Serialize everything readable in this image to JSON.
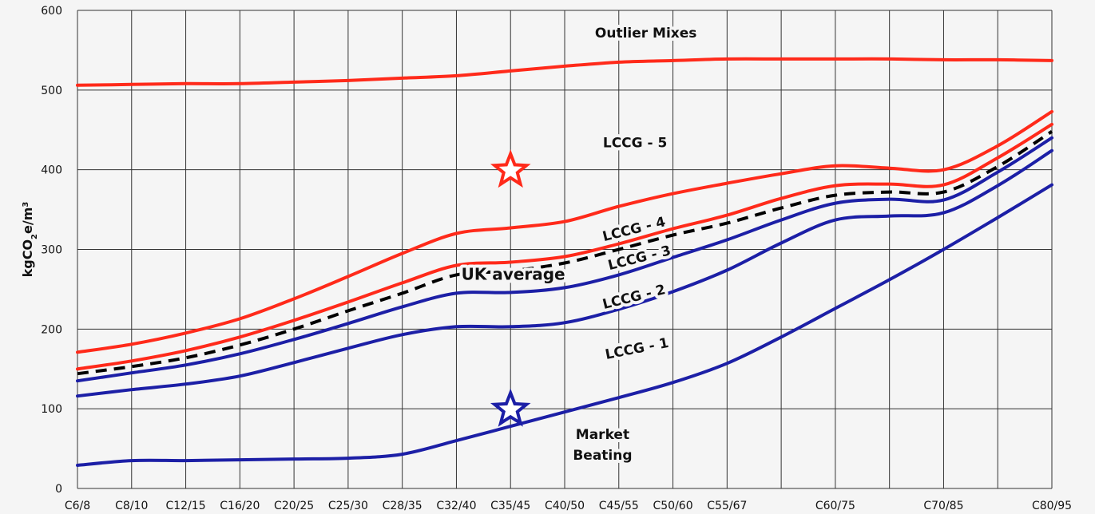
{
  "chart_data": {
    "type": "line",
    "ylabel_main": "kgCO",
    "ylabel_sub": "2",
    "ylabel_mid": "e/m",
    "ylabel_sup": "3",
    "ylim": [
      0,
      600
    ],
    "yticks": [
      0,
      100,
      200,
      300,
      400,
      500,
      600
    ],
    "grid": true,
    "categories": [
      "C6/8",
      "C8/10",
      "C12/15",
      "C16/20",
      "C20/25",
      "C25/30",
      "C28/35",
      "C32/40",
      "C35/45",
      "C40/50",
      "C45/55",
      "C50/60",
      "C55/67",
      "C60/75",
      "C70/85",
      "C80/95"
    ],
    "category_positions": [
      0,
      1,
      2,
      3,
      4,
      5,
      6,
      7,
      8,
      9,
      10,
      11,
      12,
      14,
      16,
      18
    ],
    "x_range": [
      0,
      18
    ],
    "colors": {
      "red": "#ff2a1a",
      "blue": "#1c1fa6",
      "black": "#000000",
      "grid": "#333333"
    },
    "series": [
      {
        "name": "Outlier Mixes",
        "color": "red",
        "dashed": false,
        "x": [
          0,
          1,
          2,
          3,
          4,
          5,
          6,
          7,
          8,
          9,
          10,
          11,
          12,
          13,
          14,
          15,
          16,
          17,
          18
        ],
        "values": [
          506,
          507,
          508,
          508,
          510,
          512,
          515,
          518,
          524,
          530,
          535,
          537,
          539,
          539,
          539,
          539,
          538,
          538,
          537
        ]
      },
      {
        "name": "LCCG - 5",
        "color": "red",
        "dashed": false,
        "x": [
          0,
          1,
          2,
          3,
          4,
          5,
          6,
          7,
          8,
          9,
          10,
          11,
          12,
          13,
          14,
          15,
          16,
          17,
          18
        ],
        "values": [
          171,
          181,
          195,
          213,
          238,
          266,
          295,
          320,
          327,
          335,
          354,
          370,
          383,
          395,
          405,
          402,
          400,
          430,
          473
        ]
      },
      {
        "name": "LCCG - 4",
        "color": "red",
        "dashed": false,
        "x": [
          0,
          1,
          2,
          3,
          4,
          5,
          6,
          7,
          8,
          9,
          10,
          11,
          12,
          13,
          14,
          15,
          16,
          17,
          18
        ],
        "values": [
          150,
          160,
          173,
          190,
          211,
          234,
          258,
          280,
          284,
          291,
          307,
          326,
          343,
          364,
          380,
          382,
          381,
          415,
          457
        ]
      },
      {
        "name": "UK average",
        "color": "black",
        "dashed": true,
        "x": [
          0,
          1,
          2,
          3,
          4,
          5,
          6,
          7,
          8,
          9,
          10,
          11,
          12,
          13,
          14,
          15,
          16,
          17,
          18
        ],
        "values": [
          144,
          153,
          164,
          180,
          200,
          223,
          245,
          268,
          273,
          283,
          300,
          318,
          333,
          352,
          368,
          372,
          372,
          404,
          448
        ]
      },
      {
        "name": "LCCG - 3",
        "color": "blue",
        "dashed": false,
        "x": [
          0,
          1,
          2,
          3,
          4,
          5,
          6,
          7,
          8,
          9,
          10,
          11,
          12,
          13,
          14,
          15,
          16,
          17,
          18
        ],
        "values": [
          135,
          145,
          155,
          169,
          187,
          207,
          228,
          245,
          246,
          252,
          268,
          290,
          312,
          337,
          358,
          363,
          362,
          397,
          440
        ]
      },
      {
        "name": "LCCG - 2",
        "color": "blue",
        "dashed": false,
        "x": [
          0,
          1,
          2,
          3,
          4,
          5,
          6,
          7,
          8,
          9,
          10,
          11,
          12,
          13,
          14,
          15,
          16,
          17,
          18
        ],
        "values": [
          116,
          124,
          131,
          141,
          158,
          176,
          193,
          203,
          203,
          208,
          225,
          247,
          274,
          308,
          337,
          342,
          346,
          380,
          424
        ]
      },
      {
        "name": "LCCG - 1",
        "color": "blue",
        "dashed": false,
        "x": [
          0,
          1,
          2,
          3,
          4,
          5,
          6,
          7,
          8,
          9,
          10,
          11,
          12,
          13,
          14,
          15,
          16,
          17,
          18
        ],
        "values": [
          29,
          35,
          35,
          36,
          37,
          38,
          43,
          60,
          78,
          96,
          114,
          133,
          157,
          190,
          226,
          262,
          300,
          340,
          381
        ]
      }
    ],
    "annotations": [
      {
        "text": "Outlier Mixes",
        "x": 10.5,
        "y": 566,
        "rotate": 0,
        "size": "normal"
      },
      {
        "text": "LCCG - 5",
        "x": 10.3,
        "y": 428,
        "rotate": 0,
        "size": "normal"
      },
      {
        "text": "LCCG - 4",
        "x": 10.3,
        "y": 320,
        "rotate": -14,
        "size": "normal"
      },
      {
        "text": "LCCG - 3",
        "x": 10.4,
        "y": 284,
        "rotate": -14,
        "size": "normal"
      },
      {
        "text": "UK average",
        "x": 8.05,
        "y": 262,
        "rotate": 0,
        "size": "big"
      },
      {
        "text": "LCCG - 2",
        "x": 10.3,
        "y": 235,
        "rotate": -14,
        "size": "normal"
      },
      {
        "text": "LCCG - 1",
        "x": 10.35,
        "y": 170,
        "rotate": -11,
        "size": "normal"
      },
      {
        "text": "Market",
        "x": 9.7,
        "y": 62,
        "rotate": 0,
        "size": "normal"
      },
      {
        "text": "Beating",
        "x": 9.7,
        "y": 36,
        "rotate": 0,
        "size": "normal"
      }
    ],
    "markers": [
      {
        "shape": "star",
        "x": 8,
        "y": 399,
        "color": "red"
      },
      {
        "shape": "star",
        "x": 8,
        "y": 99,
        "color": "blue"
      }
    ]
  }
}
